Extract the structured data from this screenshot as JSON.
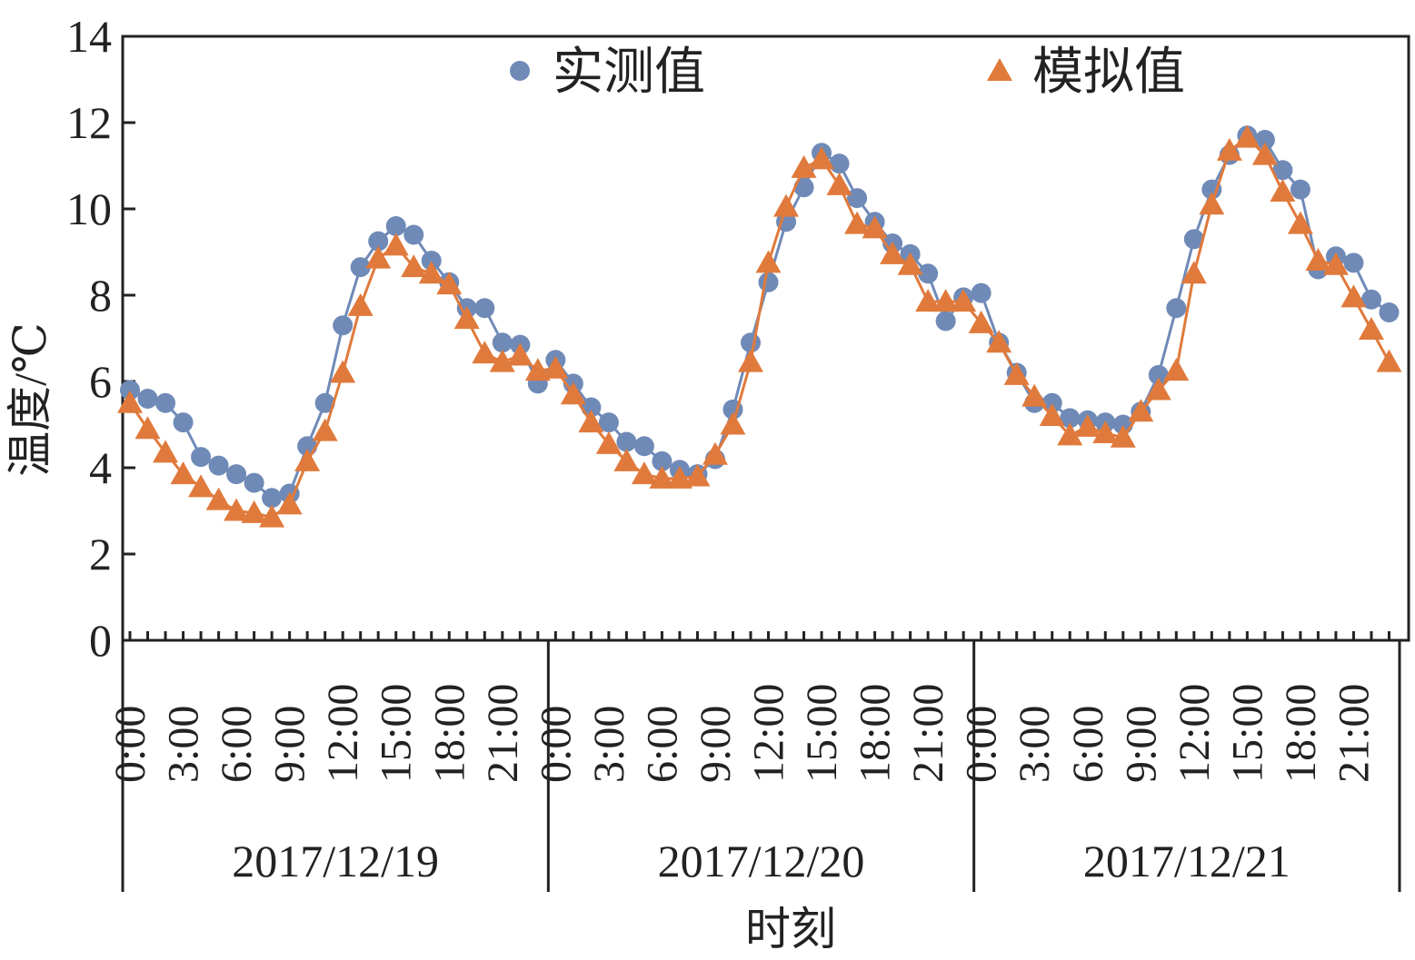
{
  "chart_data": {
    "type": "line",
    "xlabel": "时刻",
    "ylabel": "温度/℃",
    "categories": [
      "0:00",
      null,
      null,
      "3:00",
      null,
      null,
      "6:00",
      null,
      null,
      "9:00",
      null,
      null,
      "12:00",
      null,
      null,
      "15:00",
      null,
      null,
      "18:00",
      null,
      null,
      "21:00",
      null,
      null,
      "0:00",
      null,
      null,
      "3:00",
      null,
      null,
      "6:00",
      null,
      null,
      "9:00",
      null,
      null,
      "12:00",
      null,
      null,
      "15:00",
      null,
      null,
      "18:00",
      null,
      null,
      "21:00",
      null,
      null,
      "0:00",
      null,
      null,
      "3:00",
      null,
      null,
      "6:00",
      null,
      null,
      "9:00",
      null,
      null,
      "12:00",
      null,
      null,
      "15:00",
      null,
      null,
      "18:00",
      null,
      null,
      "21:00",
      null,
      null
    ],
    "groups": [
      "2017/12/19",
      "2017/12/20",
      "2017/12/21"
    ],
    "series": [
      {
        "name": "实测值",
        "color": "#6f8ab7",
        "marker": "circle",
        "values": [
          5.8,
          5.6,
          5.5,
          5.05,
          4.25,
          4.05,
          3.85,
          3.65,
          3.3,
          3.4,
          4.5,
          5.5,
          7.3,
          8.65,
          9.25,
          9.6,
          9.4,
          8.8,
          8.3,
          7.7,
          7.7,
          6.9,
          6.85,
          5.95,
          6.5,
          5.95,
          5.4,
          5.05,
          4.6,
          4.5,
          4.15,
          3.95,
          3.85,
          4.2,
          5.35,
          6.9,
          8.3,
          9.7,
          10.5,
          11.3,
          11.05,
          10.25,
          9.7,
          9.2,
          8.95,
          8.5,
          7.4,
          7.95,
          8.05,
          6.9,
          6.2,
          5.5,
          5.5,
          5.15,
          5.1,
          5.05,
          5.0,
          5.3,
          6.15,
          7.7,
          9.3,
          10.45,
          11.25,
          11.7,
          11.6,
          10.9,
          10.45,
          8.6,
          8.9,
          8.75,
          7.9,
          7.6
        ]
      },
      {
        "name": "模拟值",
        "color": "#e07a3c",
        "marker": "triangle",
        "values": [
          5.5,
          4.9,
          4.35,
          3.85,
          3.55,
          3.25,
          3.0,
          2.95,
          2.85,
          3.15,
          4.15,
          4.85,
          6.2,
          7.75,
          8.85,
          9.15,
          8.65,
          8.5,
          8.25,
          7.45,
          6.65,
          6.45,
          6.6,
          6.25,
          6.3,
          5.7,
          5.05,
          4.55,
          4.15,
          3.85,
          3.75,
          3.75,
          3.8,
          4.3,
          5.0,
          6.45,
          8.75,
          10.05,
          10.95,
          11.15,
          10.55,
          9.65,
          9.55,
          8.95,
          8.7,
          7.85,
          7.85,
          7.85,
          7.35,
          6.9,
          6.15,
          5.65,
          5.2,
          4.75,
          4.95,
          4.8,
          4.7,
          5.3,
          5.8,
          6.25,
          8.5,
          10.1,
          11.35,
          11.65,
          11.25,
          10.4,
          9.65,
          8.8,
          8.7,
          7.95,
          7.2,
          6.45
        ]
      }
    ],
    "ylim": [
      0,
      14
    ],
    "yticks": [
      0,
      2,
      4,
      6,
      8,
      10,
      12,
      14
    ]
  }
}
